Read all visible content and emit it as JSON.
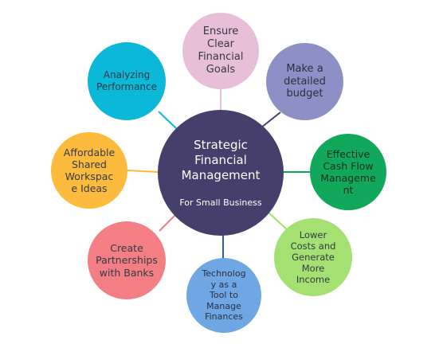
{
  "center": {
    "title": "Strategic\nFinancial\nManagement",
    "subtitle": "For Small Business",
    "color": "#463f6b"
  },
  "nodes": [
    {
      "id": "ensure-clear-financial-goals",
      "label": "Ensure\nClear\nFinancial\nGoals",
      "color": "#e8bfd9"
    },
    {
      "id": "make-detailed-budget",
      "label": "Make a\ndetailed\nbudget",
      "color": "#8c90c6"
    },
    {
      "id": "effective-cash-flow-management",
      "label": "Effective\nCash Flow\nManageme\nnt",
      "color": "#12a85c"
    },
    {
      "id": "lower-costs-generate-income",
      "label": "Lower\nCosts and\nGenerate\nMore\nIncome",
      "color": "#a4e072"
    },
    {
      "id": "technology-tool-manage-finances",
      "label": "Technolog\ny as a\nTool to\nManage\nFinances",
      "color": "#6ea7e3"
    },
    {
      "id": "create-partnerships-banks",
      "label": "Create\nPartnerships\nwith Banks",
      "color": "#f37f85"
    },
    {
      "id": "affordable-shared-workspace",
      "label": "Affordable\nShared\nWorkspac\ne Ideas",
      "color": "#fdbb3d"
    },
    {
      "id": "analyzing-performance",
      "label": "Analyzing\nPerformance",
      "color": "#0cb8d8"
    }
  ]
}
